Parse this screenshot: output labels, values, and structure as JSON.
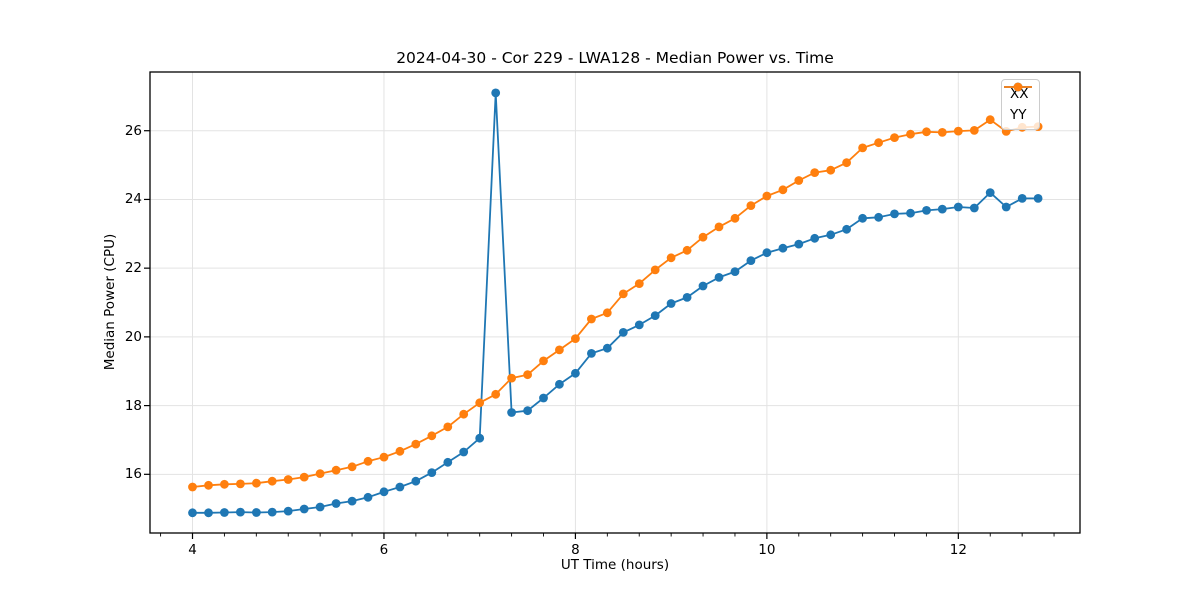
{
  "figure": {
    "background": "#ffffff",
    "spine_color": "#000000",
    "grid_color": "#e3e3e3"
  },
  "chart_data": {
    "type": "line",
    "title": "2024-04-30 - Cor 229 - LWA128 - Median Power vs. Time",
    "xlabel": "UT Time (hours)",
    "ylabel": "Median Power (CPU)",
    "xlim": [
      3.556,
      13.271
    ],
    "ylim": [
      14.292,
      27.709
    ],
    "xticks": [
      4,
      6,
      8,
      10,
      12
    ],
    "yticks": [
      16,
      18,
      20,
      22,
      24,
      26
    ],
    "minor_xtick_step": 0.3333,
    "grid": true,
    "legend": {
      "location": "upper right",
      "labels": [
        "XX",
        "YY"
      ]
    },
    "x": [
      4.0,
      4.167,
      4.333,
      4.5,
      4.667,
      4.833,
      5.0,
      5.167,
      5.333,
      5.5,
      5.667,
      5.833,
      6.0,
      6.167,
      6.333,
      6.5,
      6.667,
      6.833,
      7.0,
      7.167,
      7.333,
      7.5,
      7.667,
      7.833,
      8.0,
      8.167,
      8.333,
      8.5,
      8.667,
      8.833,
      9.0,
      9.167,
      9.333,
      9.5,
      9.667,
      9.833,
      10.0,
      10.167,
      10.333,
      10.5,
      10.667,
      10.833,
      11.0,
      11.167,
      11.333,
      11.5,
      11.667,
      11.833,
      12.0,
      12.167,
      12.333,
      12.5,
      12.667,
      12.833
    ],
    "series": [
      {
        "name": "XX",
        "color": "#1f77b4",
        "values": [
          14.88,
          14.88,
          14.89,
          14.9,
          14.89,
          14.9,
          14.93,
          14.99,
          15.05,
          15.15,
          15.22,
          15.33,
          15.49,
          15.63,
          15.8,
          16.05,
          16.35,
          16.65,
          17.05,
          27.1,
          17.8,
          17.85,
          18.22,
          18.62,
          18.94,
          19.52,
          19.67,
          20.13,
          20.35,
          20.62,
          20.97,
          21.15,
          21.48,
          21.73,
          21.9,
          22.22,
          22.45,
          22.58,
          22.7,
          22.87,
          22.97,
          23.13,
          23.45,
          23.48,
          23.58,
          23.6,
          23.68,
          23.72,
          23.78,
          23.75,
          24.2,
          23.78,
          24.03,
          24.03
        ]
      },
      {
        "name": "YY",
        "color": "#ff7f0e",
        "values": [
          15.63,
          15.68,
          15.71,
          15.72,
          15.74,
          15.8,
          15.85,
          15.92,
          16.02,
          16.12,
          16.22,
          16.38,
          16.5,
          16.67,
          16.88,
          17.12,
          17.38,
          17.75,
          18.08,
          18.33,
          18.8,
          18.9,
          19.3,
          19.62,
          19.95,
          20.52,
          20.7,
          21.25,
          21.55,
          21.95,
          22.3,
          22.52,
          22.9,
          23.2,
          23.45,
          23.82,
          24.1,
          24.28,
          24.55,
          24.78,
          24.85,
          25.07,
          25.5,
          25.65,
          25.8,
          25.9,
          25.97,
          25.95,
          25.99,
          26.01,
          26.32,
          25.98,
          26.1,
          26.12
        ]
      }
    ]
  }
}
